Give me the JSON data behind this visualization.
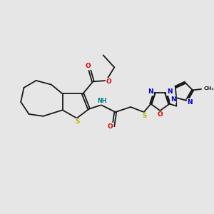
{
  "bg_color": "#e6e6e6",
  "bond_color": "#1a1a1a",
  "S_color": "#b8b800",
  "O_color": "#dd0000",
  "N_color": "#0000cc",
  "NH_color": "#008080",
  "figsize": [
    3.0,
    3.0
  ],
  "dpi": 100,
  "xlim": [
    0,
    10
  ],
  "ylim": [
    0,
    10
  ]
}
